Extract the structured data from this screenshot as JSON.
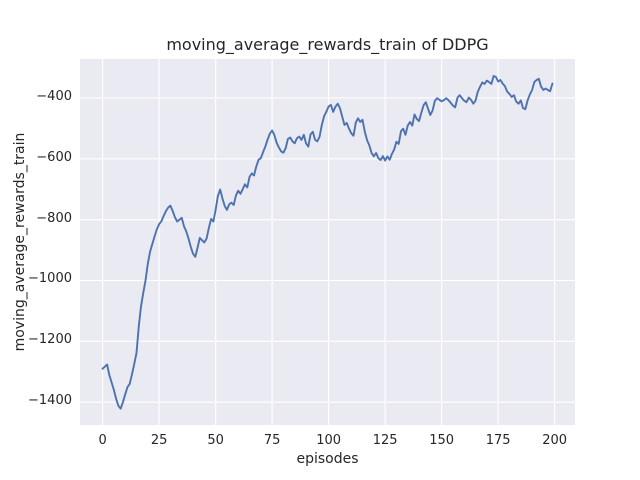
{
  "figure": {
    "background": "#ffffff"
  },
  "chart_data": {
    "type": "line",
    "title": "moving_average_rewards_train of DDPG",
    "xlabel": "episodes",
    "ylabel": "moving_average_rewards_train",
    "grid": true,
    "legend_position": "none",
    "plot_background": "#EAEAF2",
    "grid_color": "#FFFFFF",
    "line_color": "#4C72B0",
    "text_color": "#262626",
    "x_range": [
      -10,
      209
    ],
    "y_range": [
      -1475,
      -272
    ],
    "x_ticks": [
      {
        "value": 0,
        "label": "0"
      },
      {
        "value": 25,
        "label": "25"
      },
      {
        "value": 50,
        "label": "50"
      },
      {
        "value": 75,
        "label": "75"
      },
      {
        "value": 100,
        "label": "100"
      },
      {
        "value": 125,
        "label": "125"
      },
      {
        "value": 150,
        "label": "150"
      },
      {
        "value": 175,
        "label": "175"
      },
      {
        "value": 200,
        "label": "200"
      }
    ],
    "y_ticks": [
      {
        "value": -400,
        "label": "−400"
      },
      {
        "value": -600,
        "label": "−600"
      },
      {
        "value": -800,
        "label": "−800"
      },
      {
        "value": -1000,
        "label": "−1000"
      },
      {
        "value": -1200,
        "label": "−1200"
      },
      {
        "value": -1400,
        "label": "−1400"
      }
    ],
    "series": [
      {
        "name": "moving_average_rewards_train",
        "x_is_index": true,
        "x_label_meaning": "episode (0-199)",
        "values": [
          -1290,
          -1283,
          -1276,
          -1312,
          -1335,
          -1360,
          -1390,
          -1412,
          -1421,
          -1400,
          -1374,
          -1350,
          -1340,
          -1308,
          -1275,
          -1238,
          -1150,
          -1085,
          -1040,
          -1000,
          -945,
          -905,
          -880,
          -855,
          -832,
          -815,
          -805,
          -788,
          -772,
          -760,
          -754,
          -772,
          -792,
          -806,
          -800,
          -794,
          -822,
          -838,
          -862,
          -890,
          -912,
          -922,
          -893,
          -860,
          -868,
          -875,
          -862,
          -828,
          -798,
          -806,
          -768,
          -722,
          -701,
          -730,
          -755,
          -768,
          -750,
          -744,
          -752,
          -720,
          -705,
          -715,
          -700,
          -684,
          -694,
          -660,
          -648,
          -655,
          -625,
          -603,
          -598,
          -578,
          -560,
          -537,
          -517,
          -507,
          -522,
          -547,
          -563,
          -576,
          -580,
          -565,
          -535,
          -530,
          -543,
          -549,
          -532,
          -527,
          -538,
          -521,
          -549,
          -560,
          -520,
          -511,
          -538,
          -543,
          -527,
          -489,
          -460,
          -445,
          -428,
          -423,
          -446,
          -429,
          -419,
          -433,
          -461,
          -489,
          -482,
          -501,
          -516,
          -524,
          -481,
          -467,
          -479,
          -472,
          -511,
          -539,
          -556,
          -581,
          -592,
          -581,
          -598,
          -604,
          -591,
          -606,
          -592,
          -603,
          -584,
          -569,
          -544,
          -551,
          -509,
          -501,
          -521,
          -491,
          -479,
          -491,
          -454,
          -469,
          -476,
          -449,
          -424,
          -414,
          -436,
          -456,
          -441,
          -409,
          -401,
          -406,
          -411,
          -407,
          -401,
          -407,
          -416,
          -425,
          -431,
          -399,
          -391,
          -401,
          -409,
          -414,
          -399,
          -406,
          -419,
          -409,
          -379,
          -363,
          -349,
          -354,
          -343,
          -348,
          -354,
          -328,
          -331,
          -346,
          -341,
          -353,
          -361,
          -379,
          -387,
          -397,
          -391,
          -412,
          -419,
          -408,
          -433,
          -437,
          -409,
          -389,
          -374,
          -348,
          -341,
          -337,
          -363,
          -374,
          -369,
          -374,
          -378,
          -353
        ]
      }
    ]
  }
}
